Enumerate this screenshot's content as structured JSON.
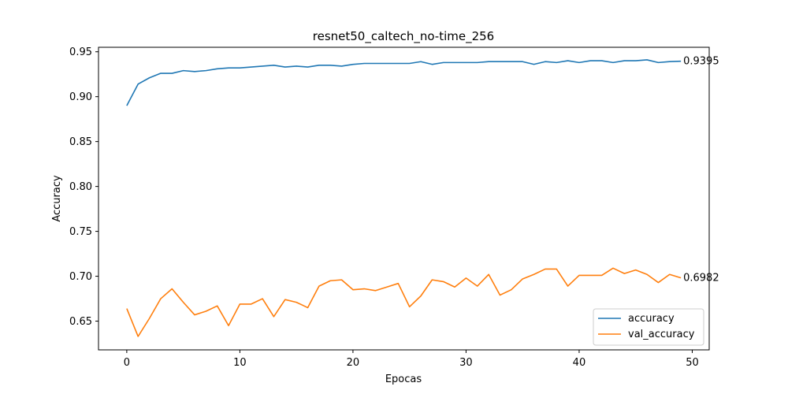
{
  "chart_data": {
    "type": "line",
    "title": "resnet50_caltech_no-time_256",
    "xlabel": "Epocas",
    "ylabel": "Accuracy",
    "xlim": [
      -2.5,
      51.5
    ],
    "ylim": [
      0.618,
      0.955
    ],
    "xticks": [
      0,
      10,
      20,
      30,
      40,
      50
    ],
    "yticks": [
      0.65,
      0.7,
      0.75,
      0.8,
      0.85,
      0.9,
      0.95
    ],
    "ytick_labels": [
      "0.65",
      "0.70",
      "0.75",
      "0.80",
      "0.85",
      "0.90",
      "0.95"
    ],
    "grid": false,
    "legend_position": "lower-right",
    "x": [
      0,
      1,
      2,
      3,
      4,
      5,
      6,
      7,
      8,
      9,
      10,
      11,
      12,
      13,
      14,
      15,
      16,
      17,
      18,
      19,
      20,
      21,
      22,
      23,
      24,
      25,
      26,
      27,
      28,
      29,
      30,
      31,
      32,
      33,
      34,
      35,
      36,
      37,
      38,
      39,
      40,
      41,
      42,
      43,
      44,
      45,
      46,
      47,
      48,
      49
    ],
    "series": [
      {
        "name": "accuracy",
        "color": "#1f77b4",
        "end_label": "0.9395",
        "values": [
          0.89,
          0.914,
          0.921,
          0.926,
          0.926,
          0.929,
          0.928,
          0.929,
          0.931,
          0.932,
          0.932,
          0.933,
          0.934,
          0.935,
          0.933,
          0.934,
          0.933,
          0.935,
          0.935,
          0.934,
          0.936,
          0.937,
          0.937,
          0.937,
          0.937,
          0.937,
          0.939,
          0.936,
          0.938,
          0.938,
          0.938,
          0.938,
          0.939,
          0.939,
          0.939,
          0.939,
          0.936,
          0.939,
          0.938,
          0.94,
          0.938,
          0.94,
          0.94,
          0.938,
          0.94,
          0.94,
          0.941,
          0.938,
          0.939,
          0.9395
        ]
      },
      {
        "name": "val_accuracy",
        "color": "#ff7f0e",
        "end_label": "0.6982",
        "values": [
          0.664,
          0.633,
          0.653,
          0.675,
          0.686,
          0.671,
          0.657,
          0.661,
          0.667,
          0.645,
          0.669,
          0.669,
          0.675,
          0.655,
          0.674,
          0.671,
          0.665,
          0.689,
          0.695,
          0.696,
          0.685,
          0.686,
          0.684,
          0.688,
          0.692,
          0.666,
          0.678,
          0.696,
          0.694,
          0.688,
          0.698,
          0.689,
          0.702,
          0.679,
          0.685,
          0.697,
          0.702,
          0.708,
          0.708,
          0.689,
          0.701,
          0.701,
          0.701,
          0.709,
          0.703,
          0.707,
          0.702,
          0.693,
          0.702,
          0.6982
        ]
      }
    ]
  }
}
